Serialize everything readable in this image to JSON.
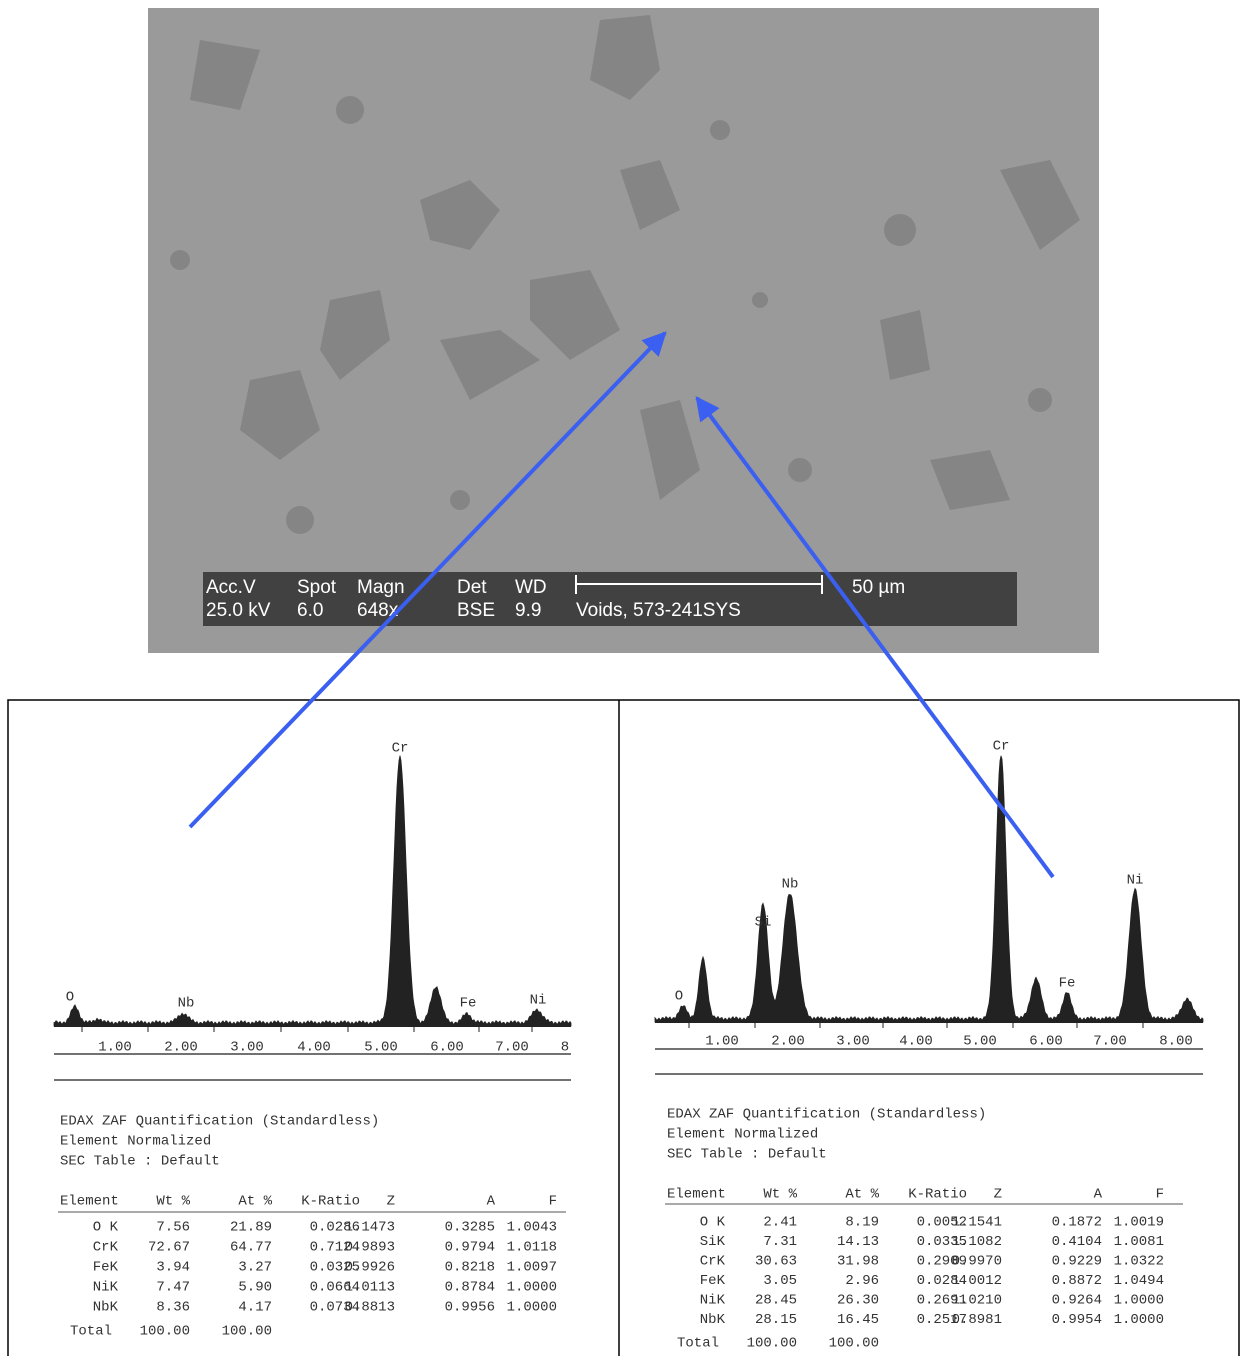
{
  "sem_image": {
    "info_bar": {
      "labels": [
        "Acc.V",
        "Spot",
        "Magn",
        "Det",
        "WD"
      ],
      "values": [
        "25.0 kV",
        "6.0",
        "648x",
        "BSE",
        "9.9"
      ],
      "scale": "50 µm",
      "sample": "Voids, 573-241SYS"
    }
  },
  "panels": [
    {
      "spectrum": {
        "peak_labels": [
          "O",
          "Nb",
          "Cr",
          "Fe",
          "Ni"
        ],
        "axis_labels": [
          "1.00",
          "2.00",
          "3.00",
          "4.00",
          "5.00",
          "6.00",
          "7.00",
          "8"
        ]
      },
      "report": {
        "lines": [
          "EDAX ZAF Quantification (Standardless)",
          "Element Normalized",
          "SEC Table : Default"
        ],
        "table": {
          "header": [
            "Element",
            "Wt %",
            "At %",
            "K-Ratio",
            "Z",
            "A",
            "F"
          ],
          "rows": [
            [
              "O K",
              "7.56",
              "21.89",
              "0.0286",
              "1.1473",
              "0.3285",
              "1.0043"
            ],
            [
              "CrK",
              "72.67",
              "64.77",
              "0.7124",
              "0.9893",
              "0.9794",
              "1.0118"
            ],
            [
              "FeK",
              "3.94",
              "3.27",
              "0.0325",
              "0.9926",
              "0.8218",
              "1.0097"
            ],
            [
              "NiK",
              "7.47",
              "5.90",
              "0.0664",
              "1.0113",
              "0.8784",
              "1.0000"
            ],
            [
              "NbK",
              "8.36",
              "4.17",
              "0.0734",
              "0.8813",
              "0.9956",
              "1.0000"
            ]
          ],
          "total": [
            "Total",
            "100.00",
            "100.00"
          ]
        }
      }
    },
    {
      "spectrum": {
        "peak_labels": [
          "O",
          "Si",
          "Nb",
          "Cr",
          "Fe",
          "Ni"
        ],
        "axis_labels": [
          "1.00",
          "2.00",
          "3.00",
          "4.00",
          "5.00",
          "6.00",
          "7.00",
          "8.00"
        ]
      },
      "report": {
        "lines": [
          "EDAX ZAF Quantification (Standardless)",
          "Element Normalized",
          "SEC Table : Default"
        ],
        "table": {
          "header": [
            "Element",
            "Wt %",
            "At %",
            "K-Ratio",
            "Z",
            "A",
            "F"
          ],
          "rows": [
            [
              "O K",
              "2.41",
              "8.19",
              "0.0052",
              "1.1541",
              "0.1872",
              "1.0019"
            ],
            [
              "SiK",
              "7.31",
              "14.13",
              "0.0335",
              "1.1082",
              "0.4104",
              "1.0081"
            ],
            [
              "CrK",
              "30.63",
              "31.98",
              "0.2909",
              "0.9970",
              "0.9229",
              "1.0322"
            ],
            [
              "FeK",
              "3.05",
              "2.96",
              "0.0284",
              "1.0012",
              "0.8872",
              "1.0494"
            ],
            [
              "NiK",
              "28.45",
              "26.30",
              "0.2691",
              "1.0210",
              "0.9264",
              "1.0000"
            ],
            [
              "NbK",
              "28.15",
              "16.45",
              "0.2517",
              "0.8981",
              "0.9954",
              "1.0000"
            ]
          ],
          "total": [
            "Total",
            "100.00",
            "100.00"
          ]
        }
      }
    }
  ]
}
